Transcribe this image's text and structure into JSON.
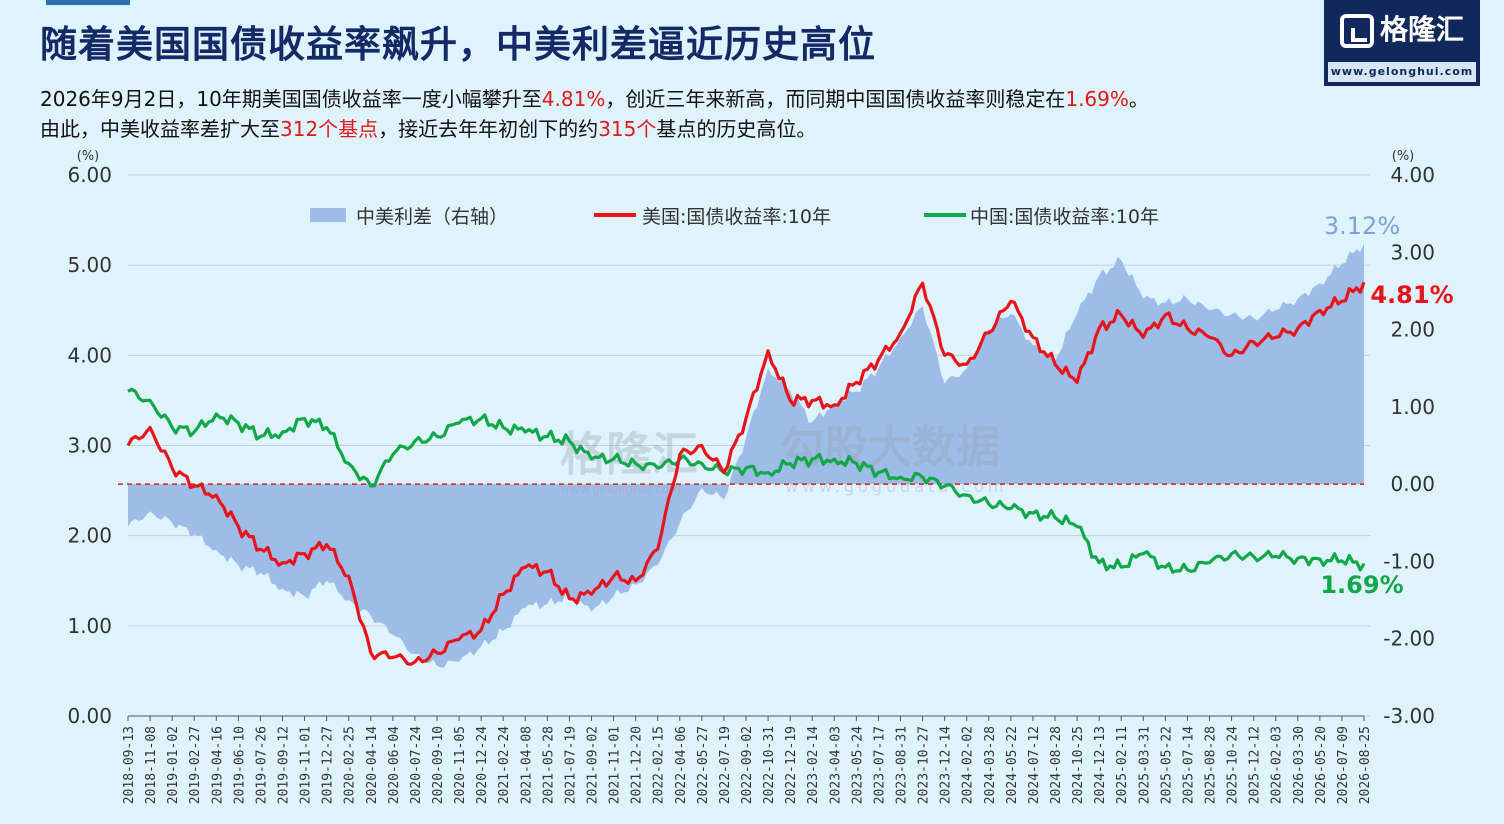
{
  "title": "随着美国国债收益率飙升，中美利差逼近历史高位",
  "subtitle": {
    "line1_a": "2026年9月2日，10年期美国国债收益率一度小幅攀升至",
    "line1_b": "4.81%",
    "line1_c": "，创近三年来新高，而同期中国国债收益率则稳定在",
    "line1_d": "1.69%",
    "line1_e": "。",
    "line2_a": "由此，中美收益率差扩大至",
    "line2_b": "312个基点",
    "line2_c": "，接近去年年初创下的约",
    "line2_d": "315个",
    "line2_e": "基点的历史高位。"
  },
  "logo": {
    "name": "格隆汇",
    "url": "www.gelonghui.com"
  },
  "watermark": {
    "text1": "格隆汇",
    "url1": "www.gelonghui.com",
    "text2": "勾股大数据",
    "url2": "www.gogudata.com"
  },
  "colors": {
    "us": "#e8141b",
    "cn": "#12a84a",
    "spread": "#9dbce8",
    "spreadLabel": "#7aa2d6",
    "zero": "#d42020"
  },
  "chart_data": {
    "type": "line",
    "left_axis": {
      "unit": "(%)",
      "ticks": [
        "0.00",
        "1.00",
        "2.00",
        "3.00",
        "4.00",
        "5.00",
        "6.00"
      ],
      "ylim": [
        0,
        6
      ]
    },
    "right_axis": {
      "unit": "(%)",
      "ticks": [
        "-3.00",
        "-2.00",
        "-1.00",
        "0.00",
        "1.00",
        "2.00",
        "3.00",
        "4.00"
      ],
      "ylim": [
        -3,
        4
      ]
    },
    "x_ticks": [
      "2018-09-13",
      "2018-11-08",
      "2019-01-02",
      "2019-02-27",
      "2019-04-16",
      "2019-06-10",
      "2019-07-26",
      "2019-09-12",
      "2019-11-01",
      "2019-12-27",
      "2020-02-25",
      "2020-04-14",
      "2020-06-04",
      "2020-07-24",
      "2020-09-10",
      "2020-11-05",
      "2020-12-24",
      "2021-02-24",
      "2021-04-08",
      "2021-05-28",
      "2021-07-19",
      "2021-09-02",
      "2021-11-01",
      "2021-12-20",
      "2022-02-15",
      "2022-04-06",
      "2022-05-27",
      "2022-07-19",
      "2022-09-02",
      "2022-10-31",
      "2022-12-19",
      "2023-02-14",
      "2023-04-03",
      "2023-05-24",
      "2023-07-17",
      "2023-08-31",
      "2023-10-27",
      "2023-12-14",
      "2024-02-02",
      "2024-03-28",
      "2024-05-22",
      "2024-07-12",
      "2024-08-28",
      "2024-10-25",
      "2024-12-13",
      "2025-02-11",
      "2025-03-31",
      "2025-05-22",
      "2025-07-14",
      "2025-08-28",
      "2025-10-24",
      "2025-12-12",
      "2026-02-03",
      "2026-03-30",
      "2026-05-20",
      "2026-07-09",
      "2026-08-25"
    ],
    "series": [
      {
        "name": "中美利差（右轴）",
        "axis": "right",
        "kind": "area",
        "x": [
          0,
          1,
          2,
          3,
          4,
          5,
          6,
          7,
          8,
          9,
          10,
          11,
          12,
          13,
          14,
          15,
          16,
          17,
          18,
          19,
          20,
          21,
          22,
          23,
          24,
          25,
          26,
          27,
          28,
          29,
          30,
          31,
          32,
          33,
          34,
          35,
          36,
          37,
          38,
          39,
          40,
          41,
          42,
          43,
          44,
          45,
          46,
          47,
          48,
          49,
          50,
          51,
          52,
          53,
          54,
          55,
          56
        ],
        "values": [
          -0.55,
          -0.35,
          -0.5,
          -0.65,
          -0.85,
          -1.05,
          -1.15,
          -1.35,
          -1.45,
          -1.25,
          -1.5,
          -1.7,
          -1.95,
          -2.2,
          -2.35,
          -2.3,
          -2.1,
          -1.9,
          -1.6,
          -1.55,
          -1.45,
          -1.65,
          -1.45,
          -1.3,
          -1.05,
          -0.5,
          -0.05,
          -0.2,
          0.6,
          1.5,
          1.2,
          0.8,
          1.05,
          1.2,
          1.5,
          1.9,
          2.3,
          1.3,
          1.5,
          2.0,
          2.2,
          1.8,
          1.6,
          2.2,
          2.7,
          2.9,
          2.4,
          2.35,
          2.4,
          2.25,
          2.2,
          2.15,
          2.25,
          2.4,
          2.6,
          2.85,
          3.12
        ]
      },
      {
        "name": "美国:国债收益率:10年",
        "axis": "left",
        "kind": "line",
        "x": [
          0,
          1,
          2,
          3,
          4,
          5,
          6,
          7,
          8,
          9,
          10,
          11,
          12,
          13,
          14,
          15,
          16,
          17,
          18,
          19,
          20,
          21,
          22,
          23,
          24,
          25,
          26,
          27,
          28,
          29,
          30,
          31,
          32,
          33,
          34,
          35,
          36,
          37,
          38,
          39,
          40,
          41,
          42,
          43,
          44,
          45,
          46,
          47,
          48,
          49,
          50,
          51,
          52,
          53,
          54,
          55,
          56
        ],
        "values": [
          3.0,
          3.2,
          2.75,
          2.55,
          2.45,
          2.1,
          1.85,
          1.7,
          1.8,
          1.9,
          1.55,
          0.7,
          0.65,
          0.6,
          0.7,
          0.85,
          0.95,
          1.35,
          1.65,
          1.6,
          1.3,
          1.35,
          1.55,
          1.5,
          1.85,
          2.9,
          3.0,
          2.7,
          3.3,
          4.05,
          3.5,
          3.5,
          3.45,
          3.7,
          3.95,
          4.25,
          4.8,
          4.0,
          3.9,
          4.25,
          4.6,
          4.2,
          3.9,
          3.7,
          4.3,
          4.45,
          4.2,
          4.45,
          4.3,
          4.2,
          4.0,
          4.15,
          4.2,
          4.3,
          4.5,
          4.6,
          4.81
        ]
      },
      {
        "name": "中国:国债收益率:10年",
        "axis": "left",
        "kind": "line",
        "x": [
          0,
          1,
          2,
          3,
          4,
          5,
          6,
          7,
          8,
          9,
          10,
          11,
          12,
          13,
          14,
          15,
          16,
          17,
          18,
          19,
          20,
          21,
          22,
          23,
          24,
          25,
          26,
          27,
          28,
          29,
          30,
          31,
          32,
          33,
          34,
          35,
          36,
          37,
          38,
          39,
          40,
          41,
          42,
          43,
          44,
          45,
          46,
          47,
          48,
          49,
          50,
          51,
          52,
          53,
          54,
          55,
          56
        ],
        "values": [
          3.6,
          3.5,
          3.2,
          3.15,
          3.35,
          3.25,
          3.1,
          3.15,
          3.3,
          3.2,
          2.8,
          2.55,
          2.9,
          3.05,
          3.1,
          3.25,
          3.3,
          3.2,
          3.15,
          3.1,
          3.05,
          2.85,
          2.85,
          2.8,
          2.75,
          2.85,
          2.8,
          2.7,
          2.75,
          2.7,
          2.8,
          2.85,
          2.85,
          2.8,
          2.7,
          2.65,
          2.65,
          2.55,
          2.45,
          2.35,
          2.3,
          2.25,
          2.2,
          2.1,
          1.7,
          1.65,
          1.8,
          1.65,
          1.62,
          1.7,
          1.8,
          1.77,
          1.77,
          1.75,
          1.74,
          1.72,
          1.69
        ]
      }
    ],
    "annotations": [
      {
        "series": "中美利差（右轴）",
        "text": "3.12%"
      },
      {
        "series": "美国:国债收益率:10年",
        "text": "4.81%"
      },
      {
        "series": "中国:国债收益率:10年",
        "text": "1.69%"
      }
    ]
  }
}
